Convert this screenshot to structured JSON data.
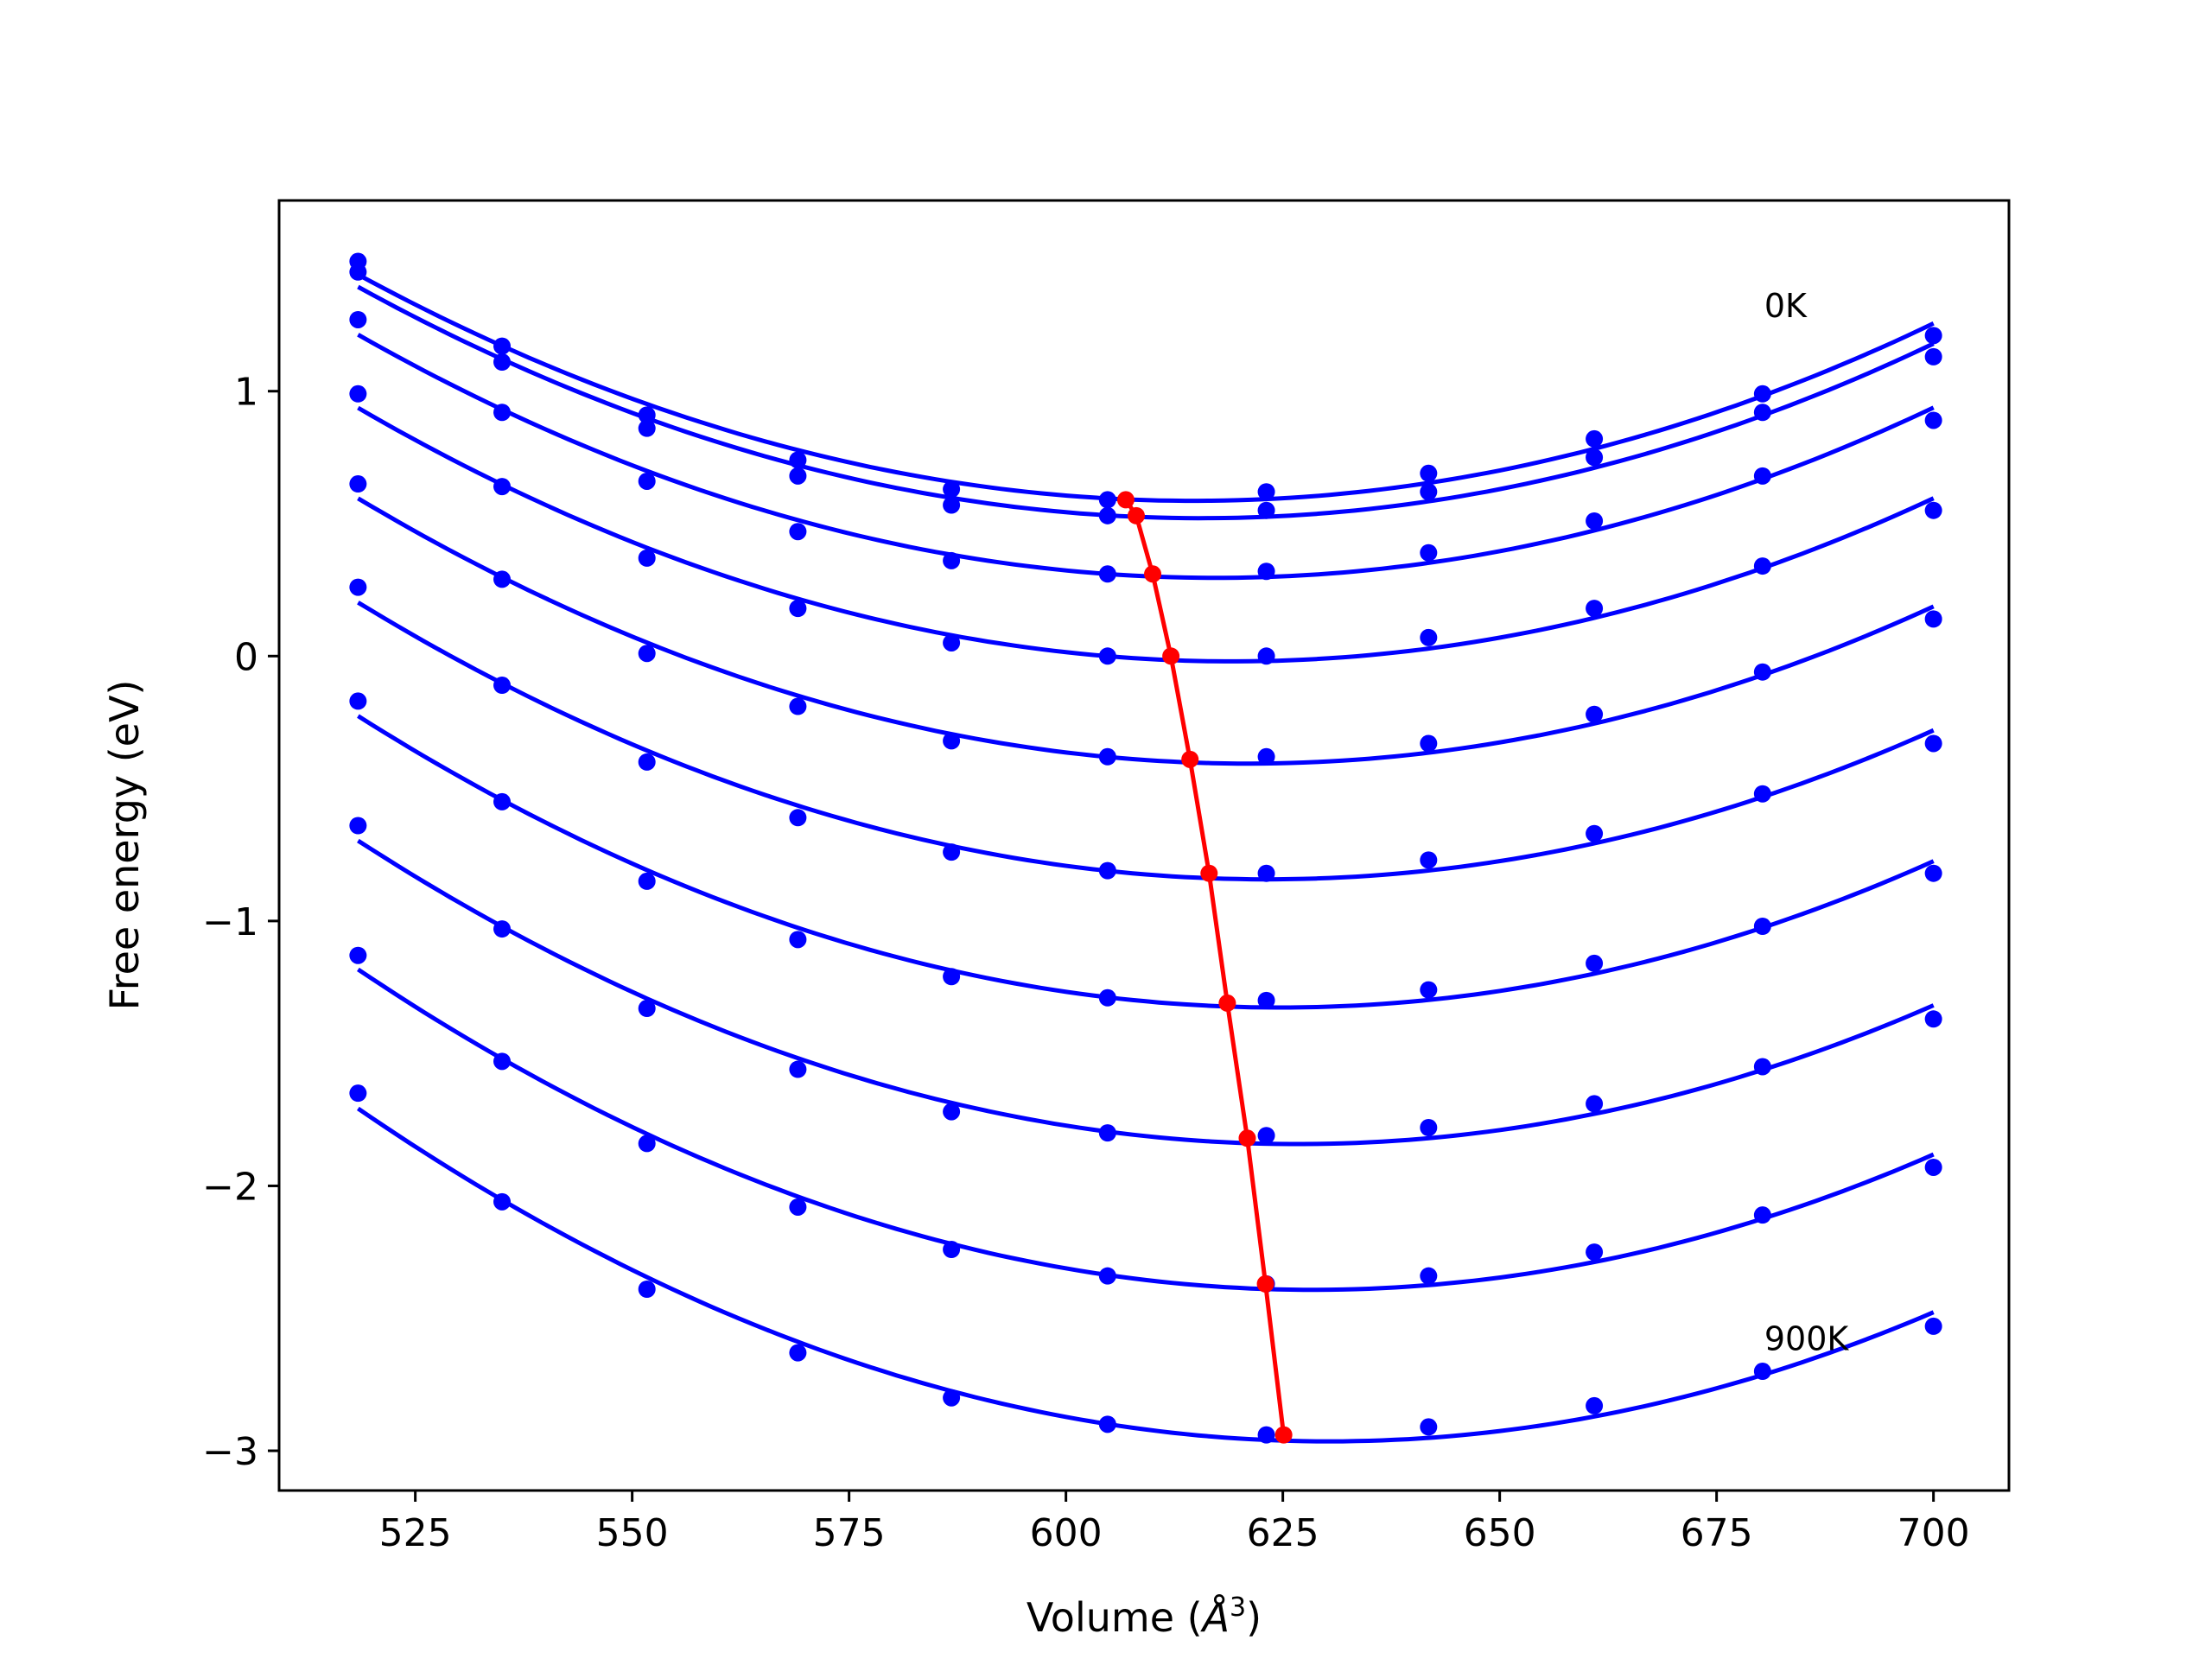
{
  "chart_data": {
    "type": "line",
    "xlabel": "Volume (Å³)",
    "xlabel_prefix": "Volume (",
    "xlabel_unit_base": "Å",
    "xlabel_unit_exp": "3",
    "xlabel_suffix": ")",
    "ylabel": "Free energy (eV)",
    "xlim": [
      509.3,
      708.7
    ],
    "ylim": [
      -3.15,
      1.72
    ],
    "xticks": [
      525,
      550,
      575,
      600,
      625,
      650,
      675,
      700
    ],
    "yticks": [
      -3,
      -2,
      -1,
      0,
      1
    ],
    "ytick_labels": [
      "−3",
      "−2",
      "−1",
      "0",
      "1"
    ],
    "grid": false,
    "colors": {
      "curves": "#0000ff",
      "minima": "#ff0000"
    },
    "annotations": [
      {
        "text": "0K",
        "x": 680.5,
        "y": 1.28
      },
      {
        "text": "900K",
        "x": 680.5,
        "y": -2.62
      }
    ],
    "volumes": [
      518.4,
      535.0,
      551.7,
      569.1,
      586.8,
      604.8,
      623.1,
      641.8,
      660.9,
      680.3,
      700.0
    ],
    "series": [
      {
        "values": [
          1.49,
          1.17,
          0.91,
          0.74,
          0.63,
          0.59,
          0.62,
          0.69,
          0.82,
          0.99,
          1.21
        ]
      },
      {
        "values": [
          1.45,
          1.11,
          0.86,
          0.68,
          0.57,
          0.53,
          0.55,
          0.62,
          0.75,
          0.92,
          1.13
        ]
      },
      {
        "values": [
          1.27,
          0.92,
          0.66,
          0.47,
          0.36,
          0.31,
          0.32,
          0.39,
          0.51,
          0.68,
          0.89
        ]
      },
      {
        "values": [
          0.99,
          0.64,
          0.37,
          0.18,
          0.05,
          0.0,
          0.0,
          0.07,
          0.18,
          0.34,
          0.55
        ]
      },
      {
        "values": [
          0.65,
          0.29,
          0.01,
          -0.19,
          -0.32,
          -0.38,
          -0.38,
          -0.33,
          -0.22,
          -0.06,
          0.14
        ]
      },
      {
        "values": [
          0.26,
          -0.11,
          -0.4,
          -0.61,
          -0.74,
          -0.81,
          -0.82,
          -0.77,
          -0.67,
          -0.52,
          -0.33
        ]
      },
      {
        "values": [
          -0.17,
          -0.55,
          -0.85,
          -1.07,
          -1.21,
          -1.29,
          -1.3,
          -1.26,
          -1.16,
          -1.02,
          -0.82
        ]
      },
      {
        "values": [
          -0.64,
          -1.03,
          -1.33,
          -1.56,
          -1.72,
          -1.8,
          -1.81,
          -1.78,
          -1.69,
          -1.55,
          -1.37
        ]
      },
      {
        "values": [
          -1.13,
          -1.53,
          -1.84,
          -2.08,
          -2.24,
          -2.34,
          -2.37,
          -2.34,
          -2.25,
          -2.11,
          -1.93
        ]
      },
      {
        "values": [
          -1.65,
          -2.06,
          -2.39,
          -2.63,
          -2.8,
          -2.9,
          -2.94,
          -2.91,
          -2.83,
          -2.7,
          -2.53
        ]
      }
    ],
    "minima": {
      "x": [
        606.9,
        608.1,
        610.0,
        612.1,
        614.3,
        616.5,
        618.6,
        620.9,
        623.0,
        625.1
      ],
      "y": [
        0.59,
        0.53,
        0.31,
        0.0,
        -0.39,
        -0.82,
        -1.31,
        -1.82,
        -2.37,
        -2.94
      ]
    }
  }
}
